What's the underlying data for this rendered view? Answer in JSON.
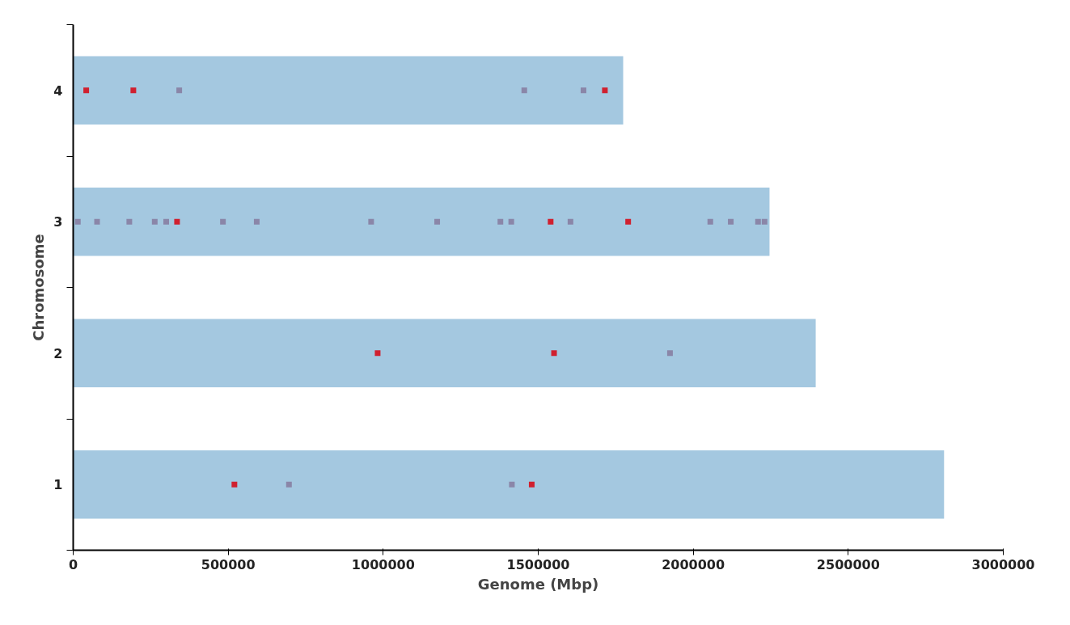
{
  "chart_data": {
    "type": "bar",
    "orientation": "horizontal",
    "xlabel": "Genome (Mbp)",
    "ylabel": "Chromosome",
    "categories": [
      "4",
      "3",
      "2",
      "1"
    ],
    "series": [
      {
        "color": "#a4c8e0",
        "values": [
          1774000,
          2246000,
          2395000,
          2809000
        ]
      },
      {
        "type": "scatter",
        "color": "#d0202f",
        "x": [
          "4",
          "4",
          "4",
          "3",
          "3",
          "3",
          "2",
          "2",
          "1",
          "1"
        ],
        "values": [
          42000,
          194000,
          1715000,
          335000,
          1540000,
          1790000,
          982000,
          1551000,
          520000,
          1479000
        ]
      },
      {
        "type": "scatter",
        "color": "#8a86a8",
        "x": [
          "4",
          "4",
          "4",
          "3",
          "3",
          "3",
          "3",
          "3",
          "3",
          "3",
          "3",
          "3",
          "3",
          "3",
          "3",
          "3",
          "3",
          "3",
          "3",
          "2",
          "1",
          "1"
        ],
        "values": [
          342000,
          1455000,
          1646000,
          15000,
          77000,
          181000,
          263000,
          300000,
          483000,
          592000,
          961000,
          1174000,
          1378000,
          1413000,
          1604000,
          2055000,
          2121000,
          2209000,
          2230000,
          1925000,
          696000,
          1415000
        ]
      }
    ],
    "xlim": [
      0,
      3000000
    ],
    "xticks": [
      0,
      500000,
      1000000,
      1500000,
      2000000,
      2500000,
      3000000
    ],
    "grid": false,
    "marker": "square"
  }
}
